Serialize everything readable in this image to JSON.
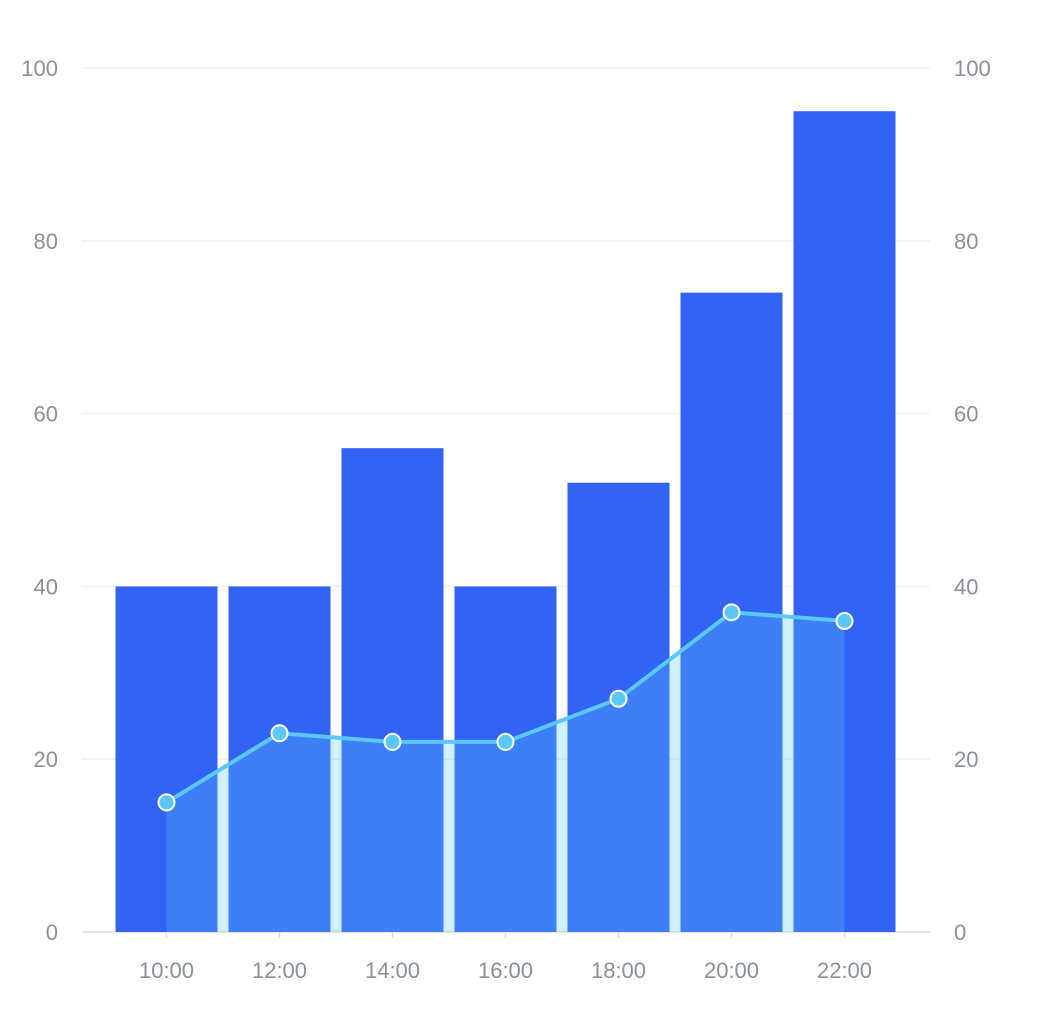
{
  "chart_data": {
    "type": "bar",
    "categories": [
      "10:00",
      "12:00",
      "14:00",
      "16:00",
      "18:00",
      "20:00",
      "22:00"
    ],
    "series": [
      {
        "type": "bar",
        "axis": "left",
        "values": [
          40,
          40,
          56,
          40,
          52,
          74,
          95
        ],
        "color": "#3363F5"
      },
      {
        "type": "area-line",
        "axis": "right",
        "values": [
          15,
          23,
          22,
          22,
          27,
          37,
          36
        ],
        "color": "#5AC8FA"
      }
    ],
    "y_left": {
      "ticks": [
        "0",
        "20",
        "40",
        "60",
        "80",
        "100"
      ],
      "range": [
        0,
        100
      ]
    },
    "y_right": {
      "ticks": [
        "0",
        "20",
        "40",
        "60",
        "80",
        "100"
      ],
      "range": [
        0,
        100
      ]
    },
    "grid": true,
    "legend": "none",
    "colors": {
      "bar": "#3363F5",
      "line": "#5AC8FA",
      "area_fill": "#5AC8FA",
      "grid": "#EEF0F4",
      "axis_text": "#8A9099"
    }
  }
}
